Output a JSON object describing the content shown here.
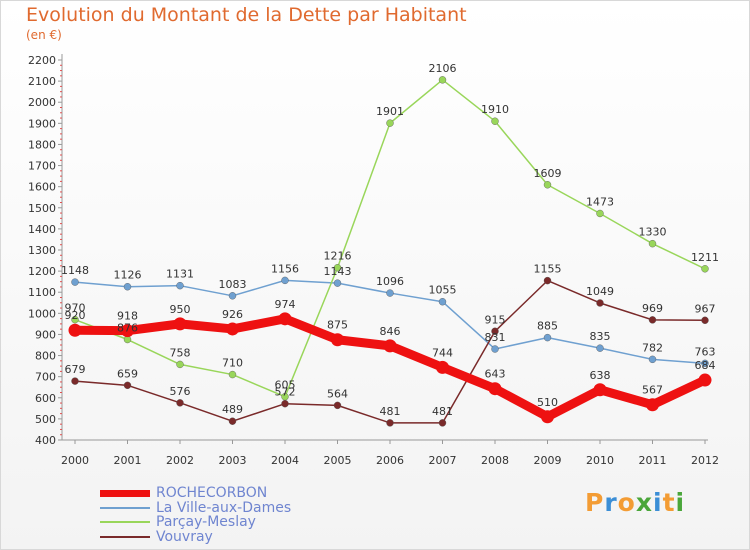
{
  "title": "Evolution du Montant de la Dette par Habitant",
  "subtitle": "(en €)",
  "brand": {
    "letters": [
      "P",
      "r",
      "o",
      "x",
      "i",
      "t",
      "i"
    ],
    "colors": [
      "#f39c34",
      "#3b8ed6",
      "#f39c34",
      "#4aa63a",
      "#3b8ed6",
      "#f39c34",
      "#4aa63a"
    ]
  },
  "chart_data": {
    "type": "line",
    "x": [
      "2000",
      "2001",
      "2002",
      "2003",
      "2004",
      "2005",
      "2006",
      "2007",
      "2008",
      "2009",
      "2010",
      "2011",
      "2012"
    ],
    "ylim": [
      400,
      2200
    ],
    "yticks": [
      400,
      500,
      600,
      700,
      800,
      900,
      1000,
      1100,
      1200,
      1300,
      1400,
      1500,
      1600,
      1700,
      1800,
      1900,
      2000,
      2100,
      2200
    ],
    "grid": false,
    "legend": "bottom-left",
    "series": [
      {
        "name": "ROCHECORBON",
        "color": "#ee1111",
        "values": [
          920,
          918,
          950,
          926,
          974,
          875,
          846,
          744,
          643,
          510,
          638,
          567,
          684
        ]
      },
      {
        "name": "La Ville-aux-Dames",
        "color": "#6fa0d0",
        "values": [
          1148,
          1126,
          1131,
          1083,
          1156,
          1143,
          1096,
          1055,
          831,
          885,
          835,
          782,
          763
        ]
      },
      {
        "name": "Parçay-Meslay",
        "color": "#99d65a",
        "values": [
          970,
          876,
          758,
          710,
          605,
          1216,
          1901,
          2106,
          1910,
          1609,
          1473,
          1330,
          1211
        ]
      },
      {
        "name": "Vouvray",
        "color": "#7a2a2a",
        "values": [
          679,
          659,
          576,
          489,
          572,
          564,
          481,
          481,
          915,
          1155,
          1049,
          969,
          967
        ]
      }
    ]
  }
}
